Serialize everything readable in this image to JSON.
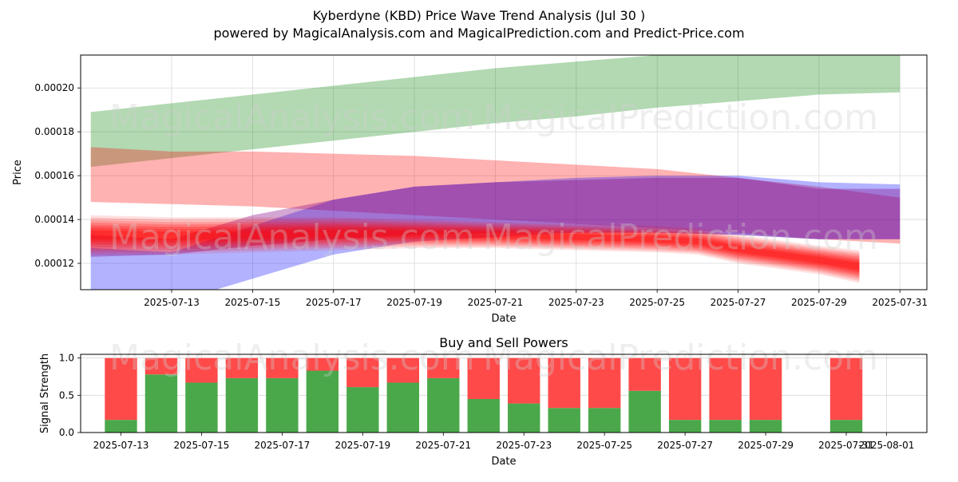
{
  "title": "Kyberdyne (KBD) Price Wave Trend Analysis (Jul 30 )",
  "subtitle": "powered by MagicalAnalysis.com and MagicalPrediction.com and Predict-Price.com",
  "watermarks": [
    "MagicalAnalysis.com",
    "MagicalPrediction.com"
  ],
  "chart_data": [
    {
      "type": "area",
      "title": "",
      "xlabel": "Date",
      "ylabel": "Price",
      "xlim": [
        "2025-07-10T18:00",
        "2025-07-31T16:00"
      ],
      "ylim": [
        0.000108,
        0.000215
      ],
      "x_ticks": [
        "2025-07-13",
        "2025-07-15",
        "2025-07-17",
        "2025-07-19",
        "2025-07-21",
        "2025-07-23",
        "2025-07-25",
        "2025-07-27",
        "2025-07-29",
        "2025-07-31"
      ],
      "y_ticks": [
        "0.00012",
        "0.00014",
        "0.00016",
        "0.00018",
        "0.00020"
      ],
      "grid": true,
      "series": [
        {
          "color": "#008000",
          "opacity": 0.3,
          "x": [
            "2025-07-11",
            "2025-07-13",
            "2025-07-15",
            "2025-07-17",
            "2025-07-19",
            "2025-07-21",
            "2025-07-23",
            "2025-07-25",
            "2025-07-27",
            "2025-07-29",
            "2025-07-31"
          ],
          "upper": [
            0.000189,
            0.000193,
            0.000197,
            0.000201,
            0.000205,
            0.000209,
            0.000212,
            0.000215,
            0.000218,
            0.000221,
            0.000223
          ],
          "lower": [
            0.000164,
            0.000168,
            0.000172,
            0.000176,
            0.00018,
            0.000184,
            0.000187,
            0.000191,
            0.000194,
            0.000197,
            0.000198
          ]
        },
        {
          "color": "#ff0000",
          "opacity": 0.3,
          "x": [
            "2025-07-11",
            "2025-07-13",
            "2025-07-15",
            "2025-07-17",
            "2025-07-19",
            "2025-07-21",
            "2025-07-23",
            "2025-07-25",
            "2025-07-27",
            "2025-07-29",
            "2025-07-31"
          ],
          "upper": [
            0.000173,
            0.000171,
            0.000171,
            0.00017,
            0.000169,
            0.000167,
            0.000165,
            0.000163,
            0.000159,
            0.000155,
            0.00015
          ],
          "lower": [
            0.000148,
            0.000147,
            0.000146,
            0.000144,
            0.000142,
            0.00014,
            0.000138,
            0.000136,
            0.000134,
            0.000131,
            0.000129
          ]
        },
        {
          "color": "#0000ff",
          "opacity": 0.3,
          "x": [
            "2025-07-11",
            "2025-07-13",
            "2025-07-15",
            "2025-07-17",
            "2025-07-19",
            "2025-07-21",
            "2025-07-23",
            "2025-07-25",
            "2025-07-27",
            "2025-07-29",
            "2025-07-31"
          ],
          "upper": [
            0.000127,
            0.000125,
            0.000137,
            0.000149,
            0.000155,
            0.000157,
            0.000159,
            0.00016,
            0.00016,
            0.000157,
            0.000156
          ],
          "lower": [
            0.000108,
            0.000102,
            0.000113,
            0.000124,
            0.00013,
            0.000132,
            0.000134,
            0.000134,
            0.000133,
            0.000131,
            0.000131
          ]
        },
        {
          "color": "#800080",
          "opacity": 0.35,
          "x": [
            "2025-07-11",
            "2025-07-13",
            "2025-07-15",
            "2025-07-17",
            "2025-07-19",
            "2025-07-21",
            "2025-07-23",
            "2025-07-25",
            "2025-07-27",
            "2025-07-29",
            "2025-07-31"
          ],
          "upper": [
            0.000133,
            0.000131,
            0.000142,
            0.000149,
            0.000155,
            0.000157,
            0.000158,
            0.000159,
            0.000159,
            0.000154,
            0.000154
          ],
          "lower": [
            0.000123,
            0.000124,
            0.000128,
            0.000131,
            0.000133,
            0.000134,
            0.000134,
            0.000134,
            0.000133,
            0.000131,
            0.000131
          ]
        }
      ],
      "forecast": {
        "color": "#ff0000",
        "x": [
          "2025-07-11",
          "2025-07-13",
          "2025-07-15",
          "2025-07-17",
          "2025-07-19",
          "2025-07-21",
          "2025-07-23",
          "2025-07-25",
          "2025-07-26",
          "2025-07-27",
          "2025-07-29",
          "2025-07-30"
        ],
        "upper": [
          0.000142,
          0.000141,
          0.000141,
          0.000141,
          0.00014,
          0.000139,
          0.000138,
          0.000137,
          0.000136,
          0.000133,
          0.000128,
          0.000126
        ],
        "lower": [
          0.000124,
          0.000124,
          0.000125,
          0.000126,
          0.000127,
          0.000127,
          0.000126,
          0.000125,
          0.000124,
          0.00012,
          0.000115,
          0.000111
        ]
      }
    },
    {
      "type": "bar",
      "title": "Buy and Sell Powers",
      "xlabel": "Date",
      "ylabel": "Signal Strength",
      "ylim": [
        0,
        1.05
      ],
      "y_ticks": [
        "0.0",
        "0.5",
        "1.0"
      ],
      "x_ticks": [
        "2025-07-13",
        "2025-07-15",
        "2025-07-17",
        "2025-07-19",
        "2025-07-21",
        "2025-07-23",
        "2025-07-25",
        "2025-07-27",
        "2025-07-29",
        "2025-07-31",
        "2025-08-01"
      ],
      "grid": true,
      "categories": [
        "2025-07-13",
        "2025-07-14",
        "2025-07-15",
        "2025-07-16",
        "2025-07-17",
        "2025-07-18",
        "2025-07-19",
        "2025-07-20",
        "2025-07-21",
        "2025-07-22",
        "2025-07-23",
        "2025-07-24",
        "2025-07-25",
        "2025-07-26",
        "2025-07-27",
        "2025-07-28",
        "2025-07-29",
        "2025-07-31"
      ],
      "buy": [
        0.17,
        0.78,
        0.67,
        0.73,
        0.73,
        0.83,
        0.61,
        0.67,
        0.73,
        0.45,
        0.39,
        0.33,
        0.33,
        0.56,
        0.17,
        0.17,
        0.17,
        0.17
      ],
      "sell": [
        0.83,
        0.22,
        0.33,
        0.27,
        0.27,
        0.17,
        0.39,
        0.33,
        0.27,
        0.55,
        0.61,
        0.67,
        0.67,
        0.44,
        0.83,
        0.83,
        0.83,
        0.83
      ],
      "buy_color": "#4aa84a",
      "sell_color": "#ff4a4a"
    }
  ]
}
